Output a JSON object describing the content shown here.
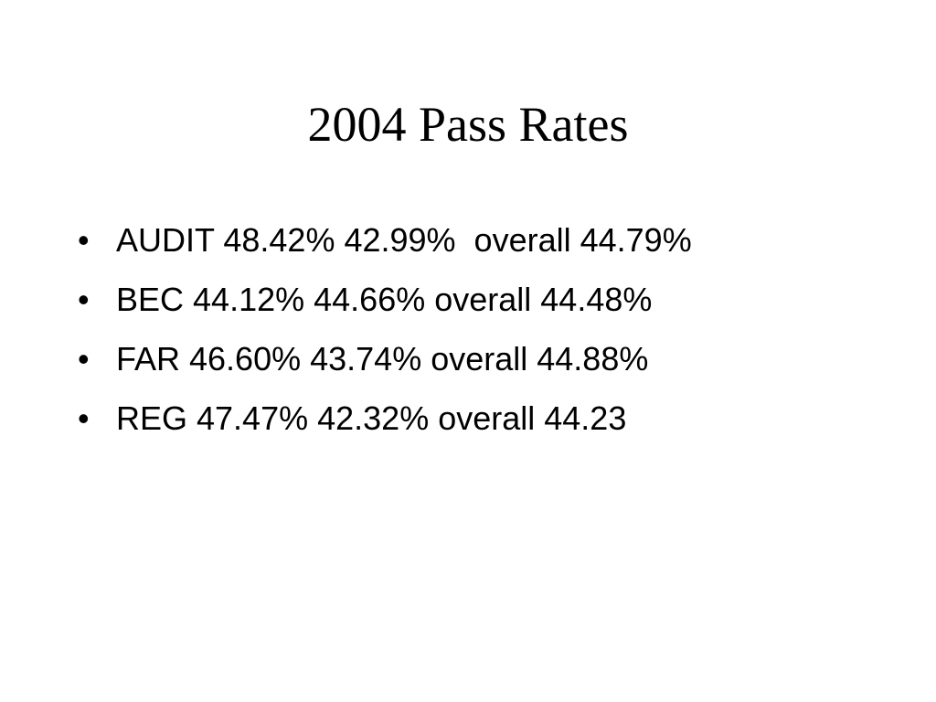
{
  "title": "2004 Pass Rates",
  "bullets": [
    "AUDIT 48.42% 42.99%  overall 44.79%",
    "BEC 44.12% 44.66% overall 44.48%",
    "FAR 46.60% 43.74% overall 44.88%",
    "REG 47.47% 42.32% overall 44.23"
  ]
}
